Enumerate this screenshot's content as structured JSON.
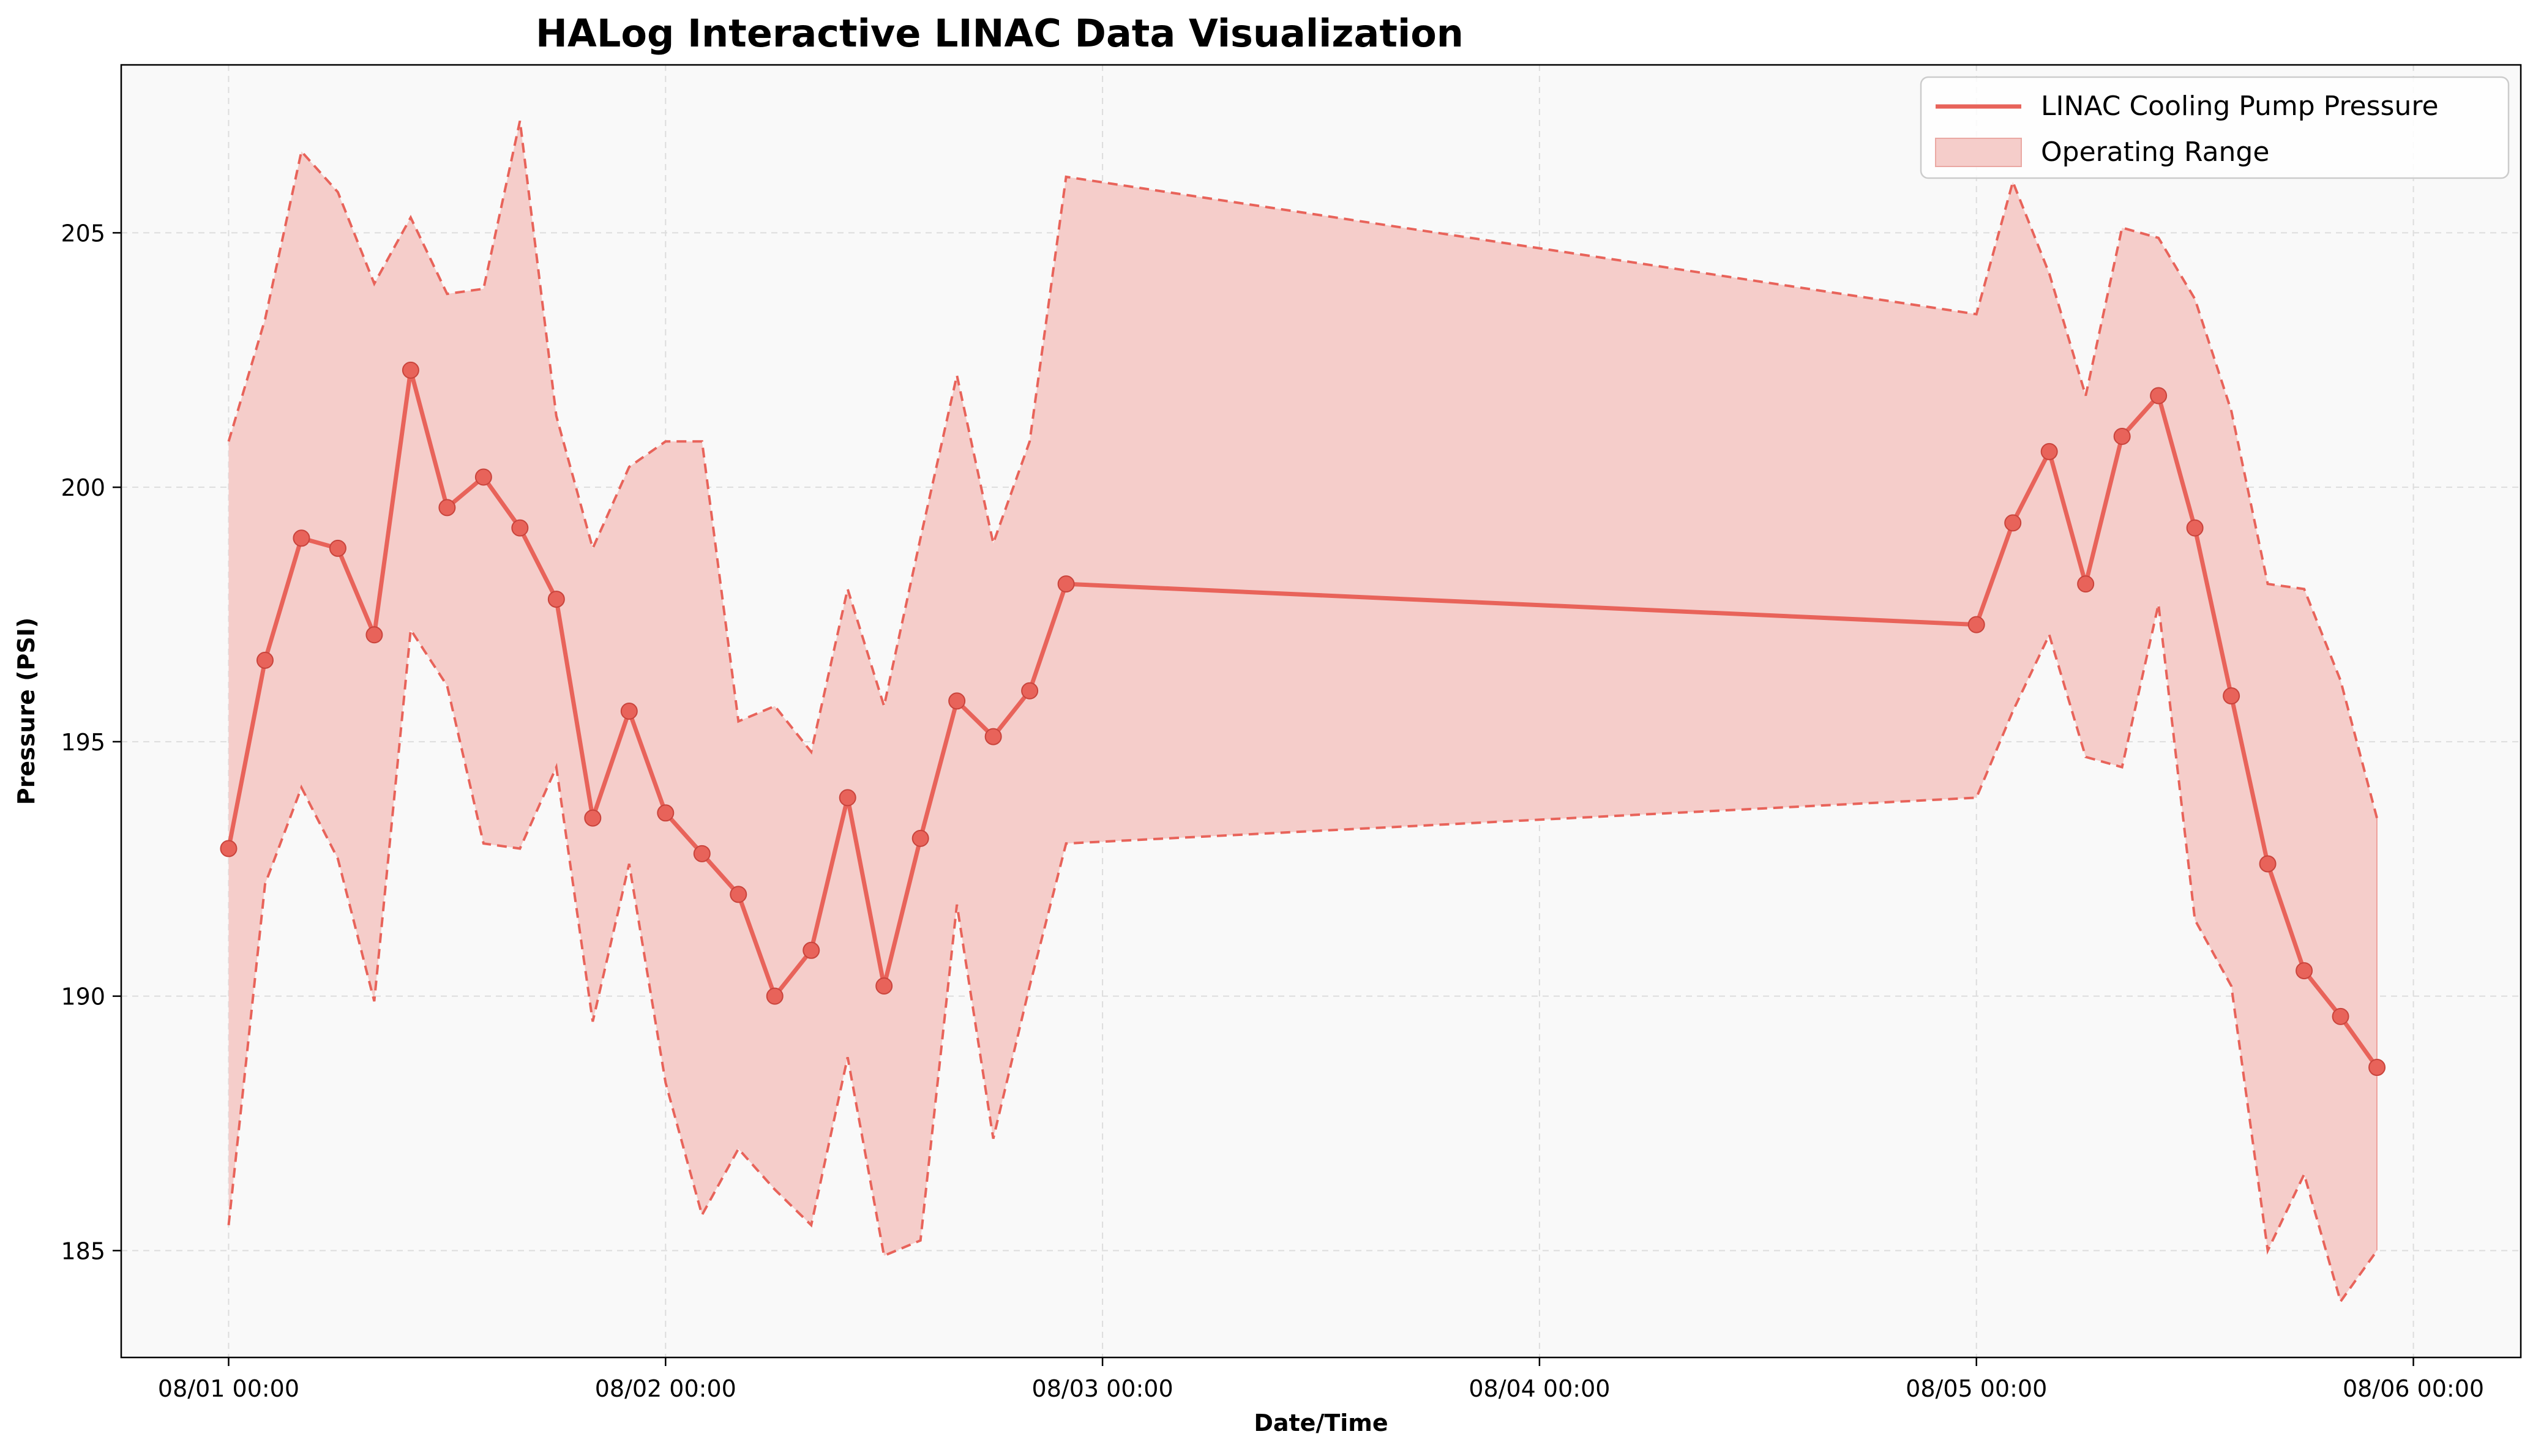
{
  "chart_data": {
    "type": "line",
    "title": "HALog Interactive LINAC Data Visualization",
    "xlabel": "Date/Time",
    "ylabel": "Pressure (PSI)",
    "x_ticks": [
      {
        "label": "08/01 00:00",
        "hours": 0
      },
      {
        "label": "08/02 00:00",
        "hours": 24
      },
      {
        "label": "08/03 00:00",
        "hours": 48
      },
      {
        "label": "08/04 00:00",
        "hours": 72
      },
      {
        "label": "08/05 00:00",
        "hours": 96
      },
      {
        "label": "08/06 00:00",
        "hours": 120
      }
    ],
    "y_ticks": [
      185,
      190,
      195,
      200,
      205
    ],
    "xlim_hours": [
      -5.9,
      125.9
    ],
    "ylim": [
      182.9,
      208.3
    ],
    "grid": true,
    "grid_style": "dashed",
    "legend_position": "upper right",
    "colors": {
      "line": "#E8635A",
      "band": "#F5CDCA",
      "band_edge": "#E8635A",
      "plot_background": "#F9F9F9",
      "grid": "#DDDDDD"
    },
    "series": [
      {
        "name": "LINAC Cooling Pump Pressure",
        "x_hours": [
          0,
          2,
          4,
          6,
          8,
          10,
          12,
          14,
          16,
          18,
          20,
          22,
          24,
          26,
          28,
          30,
          32,
          34,
          36,
          38,
          40,
          42,
          44,
          46,
          96,
          98,
          100,
          102,
          104,
          106,
          108,
          110,
          112,
          114,
          116,
          118
        ],
        "values": [
          192.9,
          196.6,
          199.0,
          198.8,
          197.1,
          202.3,
          199.6,
          200.2,
          199.2,
          197.8,
          193.5,
          195.6,
          193.6,
          192.8,
          192.0,
          190.0,
          190.9,
          193.9,
          190.2,
          193.1,
          195.8,
          195.1,
          196.0,
          198.1,
          197.3,
          199.3,
          200.7,
          198.1,
          201.0,
          201.8,
          199.2,
          195.9,
          192.6,
          190.5,
          189.6,
          188.6
        ]
      },
      {
        "name": "Operating Range",
        "type": "band",
        "x_hours": [
          0,
          2,
          4,
          6,
          8,
          10,
          12,
          14,
          16,
          18,
          20,
          22,
          24,
          26,
          28,
          30,
          32,
          34,
          36,
          38,
          40,
          42,
          44,
          46,
          96,
          98,
          100,
          102,
          104,
          106,
          108,
          110,
          112,
          114,
          116,
          118
        ],
        "upper": [
          200.9,
          203.3,
          206.6,
          205.8,
          204.0,
          205.3,
          203.8,
          203.9,
          207.2,
          201.4,
          198.8,
          200.4,
          200.9,
          200.9,
          195.4,
          195.7,
          194.8,
          198.0,
          195.7,
          199.0,
          202.2,
          198.9,
          200.9,
          206.1,
          203.4,
          206.0,
          204.2,
          201.8,
          205.1,
          204.9,
          203.7,
          201.5,
          198.1,
          198.0,
          196.2,
          193.5
        ],
        "lower": [
          185.5,
          192.2,
          194.1,
          192.7,
          189.9,
          197.2,
          196.1,
          193.0,
          192.9,
          194.5,
          189.5,
          192.6,
          188.3,
          185.7,
          187.0,
          186.2,
          185.5,
          188.8,
          184.9,
          185.2,
          191.8,
          187.2,
          190.2,
          193.0,
          193.9,
          195.6,
          197.1,
          194.7,
          194.5,
          197.7,
          191.5,
          190.2,
          185.0,
          186.5,
          184.0,
          185.0
        ]
      }
    ]
  }
}
